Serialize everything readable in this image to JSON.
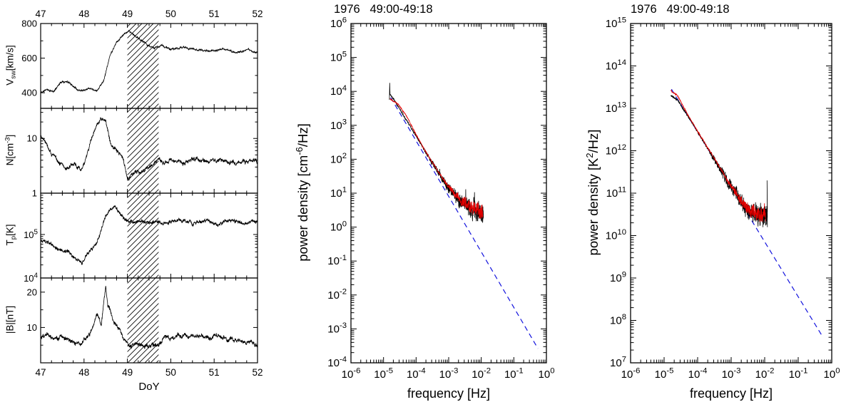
{
  "figure": {
    "bg": "#ffffff",
    "black": "#000000",
    "red": "#e00000",
    "blue": "#1212dd"
  },
  "chart_data": [
    {
      "id": "solar-wind-timeseries",
      "type": "line",
      "xlabel": "DoY",
      "x_range": [
        47,
        52
      ],
      "x_ticks": [
        47,
        48,
        49,
        50,
        51,
        52
      ],
      "x_minor_step": 0.25,
      "hatch_region": [
        49.0,
        49.72
      ],
      "panels": [
        {
          "name": "Vsw",
          "ylabel_parts": [
            [
              "V"
            ],
            [
              "sw",
              "sub"
            ],
            [
              "[km/s]"
            ]
          ],
          "scale": "linear",
          "y_range": [
            310,
            800
          ],
          "y_majors": [
            {
              "v": 400,
              "label": "400"
            },
            {
              "v": 600,
              "label": "600"
            },
            {
              "v": 800,
              "label": "800"
            }
          ],
          "y_minor_step": 100,
          "noise": 8,
          "seed": 11,
          "waypoints": [
            [
              47,
              400
            ],
            [
              47.15,
              420
            ],
            [
              47.3,
              405
            ],
            [
              47.45,
              460
            ],
            [
              47.6,
              468
            ],
            [
              47.75,
              440
            ],
            [
              47.9,
              415
            ],
            [
              48.1,
              428
            ],
            [
              48.3,
              415
            ],
            [
              48.45,
              470
            ],
            [
              48.6,
              615
            ],
            [
              48.75,
              690
            ],
            [
              48.9,
              735
            ],
            [
              49.05,
              752
            ],
            [
              49.2,
              722
            ],
            [
              49.35,
              700
            ],
            [
              49.5,
              672
            ],
            [
              49.62,
              655
            ],
            [
              49.8,
              672
            ],
            [
              50.0,
              650
            ],
            [
              50.3,
              662
            ],
            [
              50.6,
              650
            ],
            [
              50.9,
              640
            ],
            [
              51.2,
              652
            ],
            [
              51.5,
              634
            ],
            [
              51.8,
              646
            ],
            [
              52,
              630
            ]
          ]
        },
        {
          "name": "N",
          "ylabel_parts": [
            [
              "N[cm"
            ],
            [
              "-3",
              "sup"
            ],
            [
              "]"
            ]
          ],
          "scale": "log",
          "y_range": [
            0,
            1.55
          ],
          "y_majors": [
            {
              "v": 1,
              "label": "10"
            },
            {
              "v": 0,
              "label": "1"
            }
          ],
          "noise": 0.055,
          "seed": 22,
          "waypoints": [
            [
              47,
              1.05
            ],
            [
              47.1,
              1.0
            ],
            [
              47.25,
              0.72
            ],
            [
              47.45,
              0.56
            ],
            [
              47.6,
              0.46
            ],
            [
              47.8,
              0.52
            ],
            [
              47.95,
              0.44
            ],
            [
              48.1,
              0.82
            ],
            [
              48.25,
              1.15
            ],
            [
              48.4,
              1.36
            ],
            [
              48.5,
              1.3
            ],
            [
              48.6,
              0.96
            ],
            [
              48.75,
              0.76
            ],
            [
              48.9,
              0.62
            ],
            [
              49.0,
              0.28
            ],
            [
              49.15,
              0.34
            ],
            [
              49.3,
              0.4
            ],
            [
              49.5,
              0.48
            ],
            [
              49.65,
              0.56
            ],
            [
              49.75,
              0.63
            ],
            [
              49.85,
              0.55
            ],
            [
              50.0,
              0.6
            ],
            [
              50.3,
              0.55
            ],
            [
              50.6,
              0.63
            ],
            [
              50.9,
              0.58
            ],
            [
              51.2,
              0.6
            ],
            [
              51.5,
              0.55
            ],
            [
              51.8,
              0.6
            ],
            [
              52,
              0.58
            ]
          ]
        },
        {
          "name": "Tp",
          "ylabel_parts": [
            [
              "T"
            ],
            [
              "p",
              "sub"
            ],
            [
              "[K]"
            ]
          ],
          "scale": "log",
          "y_range": [
            4,
            5.95
          ],
          "y_majors": [
            {
              "v": 5,
              "pow": "5"
            },
            {
              "v": 4,
              "pow": "4"
            }
          ],
          "noise": 0.06,
          "seed": 33,
          "waypoints": [
            [
              47,
              4.85
            ],
            [
              47.2,
              4.8
            ],
            [
              47.4,
              4.66
            ],
            [
              47.6,
              4.6
            ],
            [
              47.8,
              4.46
            ],
            [
              47.95,
              4.3
            ],
            [
              48.1,
              4.56
            ],
            [
              48.3,
              4.82
            ],
            [
              48.45,
              5.3
            ],
            [
              48.6,
              5.56
            ],
            [
              48.7,
              5.62
            ],
            [
              48.85,
              5.46
            ],
            [
              49.0,
              5.3
            ],
            [
              49.2,
              5.3
            ],
            [
              49.4,
              5.26
            ],
            [
              49.6,
              5.3
            ],
            [
              49.8,
              5.26
            ],
            [
              50.0,
              5.3
            ],
            [
              50.2,
              5.34
            ],
            [
              50.5,
              5.26
            ],
            [
              50.8,
              5.3
            ],
            [
              51.1,
              5.26
            ],
            [
              51.4,
              5.3
            ],
            [
              51.7,
              5.26
            ],
            [
              52,
              5.3
            ]
          ]
        },
        {
          "name": "B",
          "ylabel_parts": [
            [
              "|B|[nT]"
            ]
          ],
          "scale": "linear",
          "y_range": [
            0,
            24
          ],
          "y_majors": [
            {
              "v": 20,
              "label": "20"
            },
            {
              "v": 10,
              "label": "10"
            }
          ],
          "y_minor_step": 5,
          "noise": 0.9,
          "seed": 44,
          "waypoints": [
            [
              47,
              7
            ],
            [
              47.15,
              8
            ],
            [
              47.3,
              6.5
            ],
            [
              47.5,
              7.5
            ],
            [
              47.7,
              6
            ],
            [
              47.9,
              5.5
            ],
            [
              48.05,
              7
            ],
            [
              48.2,
              10
            ],
            [
              48.3,
              14
            ],
            [
              48.4,
              11.5
            ],
            [
              48.5,
              21.5
            ],
            [
              48.55,
              16
            ],
            [
              48.65,
              13
            ],
            [
              48.8,
              9.5
            ],
            [
              48.95,
              6.2
            ],
            [
              49.02,
              5
            ],
            [
              49.2,
              5
            ],
            [
              49.4,
              4.6
            ],
            [
              49.6,
              5
            ],
            [
              49.75,
              5.6
            ],
            [
              49.85,
              7.6
            ],
            [
              50.0,
              7
            ],
            [
              50.2,
              7.5
            ],
            [
              50.5,
              8
            ],
            [
              50.8,
              7
            ],
            [
              51.1,
              7.6
            ],
            [
              51.4,
              6.6
            ],
            [
              51.7,
              6
            ],
            [
              52,
              5.2
            ]
          ]
        }
      ]
    },
    {
      "id": "density-power-spectrum",
      "type": "line",
      "title": "1976   49:00-49:18",
      "xlabel": "frequency [Hz]",
      "ylabel_parts": [
        [
          "power density [cm"
        ],
        [
          "-6",
          "sup"
        ],
        [
          "/Hz]"
        ]
      ],
      "x_log_range": [
        -6,
        0
      ],
      "x_tick_exps": [
        -6,
        -5,
        -4,
        -3,
        -2,
        -1,
        0
      ],
      "y_log_range": [
        -4,
        6
      ],
      "y_tick_exps": [
        6,
        5,
        4,
        3,
        2,
        1,
        0,
        -1,
        -2,
        -3,
        -4
      ],
      "fit_line": {
        "x0": -4.78,
        "y0": 3.82,
        "x1": -0.26,
        "y1": -3.58,
        "color": "blue",
        "dash": "7 5"
      },
      "series": [
        {
          "name": "measured-black",
          "color": "black",
          "seed": 7,
          "x_span": [
            -4.8,
            -1.93
          ],
          "prepend": [
            [
              -4.82,
              3.75
            ],
            [
              -4.81,
              4.25
            ]
          ],
          "noise_base": 0.03,
          "noise_max": 0.36,
          "noise_onset": -3.8,
          "waypoints": [
            [
              -4.8,
              3.92
            ],
            [
              -4.55,
              3.55
            ],
            [
              -4.3,
              3.16
            ],
            [
              -4.05,
              2.76
            ],
            [
              -3.8,
              2.36
            ],
            [
              -3.55,
              1.96
            ],
            [
              -3.3,
              1.58
            ],
            [
              -3.05,
              1.22
            ],
            [
              -2.8,
              0.95
            ],
            [
              -2.55,
              0.72
            ],
            [
              -2.3,
              0.57
            ],
            [
              -2.1,
              0.5
            ],
            [
              -1.93,
              0.45
            ]
          ]
        },
        {
          "name": "smoothed-red",
          "color": "red",
          "seed": 19,
          "x_span": [
            -4.8,
            -1.95
          ],
          "noise_base": 0.02,
          "noise_max": 0.27,
          "noise_onset": -3.3,
          "waypoints": [
            [
              -4.8,
              3.78
            ],
            [
              -4.55,
              3.62
            ],
            [
              -4.3,
              3.28
            ],
            [
              -4.05,
              2.82
            ],
            [
              -3.8,
              2.38
            ],
            [
              -3.55,
              1.98
            ],
            [
              -3.3,
              1.6
            ],
            [
              -3.05,
              1.25
            ],
            [
              -2.8,
              0.97
            ],
            [
              -2.55,
              0.74
            ],
            [
              -2.3,
              0.58
            ],
            [
              -2.1,
              0.5
            ],
            [
              -1.93,
              0.46
            ]
          ]
        }
      ]
    },
    {
      "id": "temperature-power-spectrum",
      "type": "line",
      "title": "1976   49:00-49:18",
      "xlabel": "frequency [Hz]",
      "ylabel_parts": [
        [
          "power density [K"
        ],
        [
          "2",
          "sup"
        ],
        [
          "/Hz]"
        ]
      ],
      "x_log_range": [
        -6,
        0
      ],
      "x_tick_exps": [
        -6,
        -5,
        -4,
        -3,
        -2,
        -1,
        0
      ],
      "y_log_range": [
        7,
        15
      ],
      "y_tick_exps": [
        15,
        14,
        13,
        12,
        11,
        10,
        9,
        8,
        7
      ],
      "fit_line": {
        "x0": -4.78,
        "y0": 13.45,
        "x1": -0.26,
        "y1": 7.6,
        "color": "blue",
        "dash": "7 5"
      },
      "series": [
        {
          "name": "measured-black",
          "color": "black",
          "seed": 57,
          "x_span": [
            -4.8,
            -1.92
          ],
          "append": [
            [
              -1.93,
              11.3
            ],
            [
              -1.92,
              10.2
            ]
          ],
          "noise_base": 0.03,
          "noise_max": 0.32,
          "noise_onset": -3.8,
          "waypoints": [
            [
              -4.8,
              13.3
            ],
            [
              -4.6,
              13.2
            ],
            [
              -4.4,
              12.95
            ],
            [
              -4.2,
              12.7
            ],
            [
              -4.0,
              12.44
            ],
            [
              -3.75,
              12.12
            ],
            [
              -3.5,
              11.8
            ],
            [
              -3.25,
              11.47
            ],
            [
              -3.0,
              11.14
            ],
            [
              -2.75,
              10.85
            ],
            [
              -2.5,
              10.62
            ],
            [
              -2.25,
              10.5
            ],
            [
              -2.1,
              10.47
            ],
            [
              -1.93,
              10.5
            ]
          ]
        },
        {
          "name": "smoothed-red",
          "color": "red",
          "seed": 71,
          "x_span": [
            -4.8,
            -1.97
          ],
          "noise_base": 0.02,
          "noise_max": 0.24,
          "noise_onset": -3.3,
          "waypoints": [
            [
              -4.8,
              13.42
            ],
            [
              -4.6,
              13.3
            ],
            [
              -4.4,
              13.0
            ],
            [
              -4.2,
              12.72
            ],
            [
              -4.0,
              12.46
            ],
            [
              -3.75,
              12.14
            ],
            [
              -3.5,
              11.82
            ],
            [
              -3.25,
              11.49
            ],
            [
              -3.0,
              11.16
            ],
            [
              -2.75,
              10.87
            ],
            [
              -2.5,
              10.64
            ],
            [
              -2.25,
              10.52
            ],
            [
              -2.1,
              10.48
            ],
            [
              -1.93,
              10.5
            ]
          ]
        }
      ]
    }
  ]
}
